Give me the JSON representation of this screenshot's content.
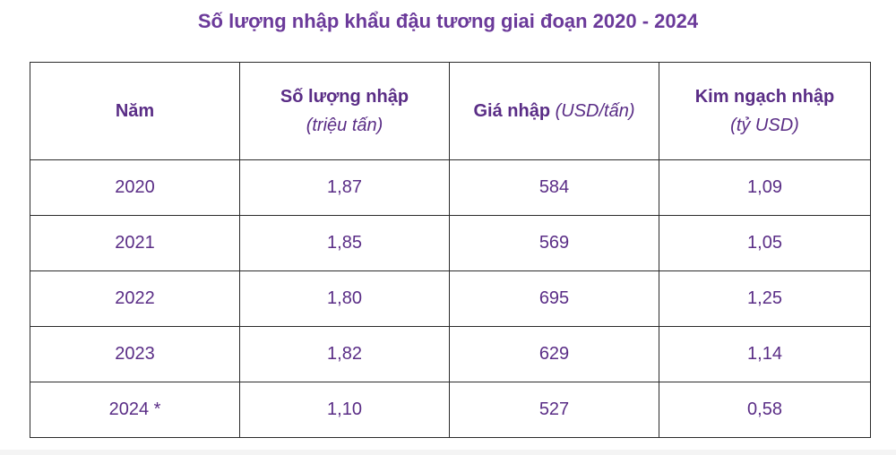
{
  "title": "Số lượng nhập khẩu đậu tương giai đoạn 2020 - 2024",
  "headers": [
    {
      "label": "Năm",
      "unit": ""
    },
    {
      "label": "Số lượng nhập",
      "unit": "(triệu tấn)"
    },
    {
      "label": "Giá nhập",
      "unit": "(USD/tấn)"
    },
    {
      "label": "Kim ngạch nhập",
      "unit": "(tỷ USD)"
    }
  ],
  "rows": [
    [
      "2020",
      "1,87",
      "584",
      "1,09"
    ],
    [
      "2021",
      "1,85",
      "569",
      "1,05"
    ],
    [
      "2022",
      "1,80",
      "695",
      "1,25"
    ],
    [
      "2023",
      "1,82",
      "629",
      "1,14"
    ],
    [
      "2024 *",
      "1,10",
      "527",
      "0,58"
    ]
  ],
  "colors": {
    "text": "#5a2d86",
    "title": "#6b3a9a",
    "border": "#2b2b2b"
  }
}
